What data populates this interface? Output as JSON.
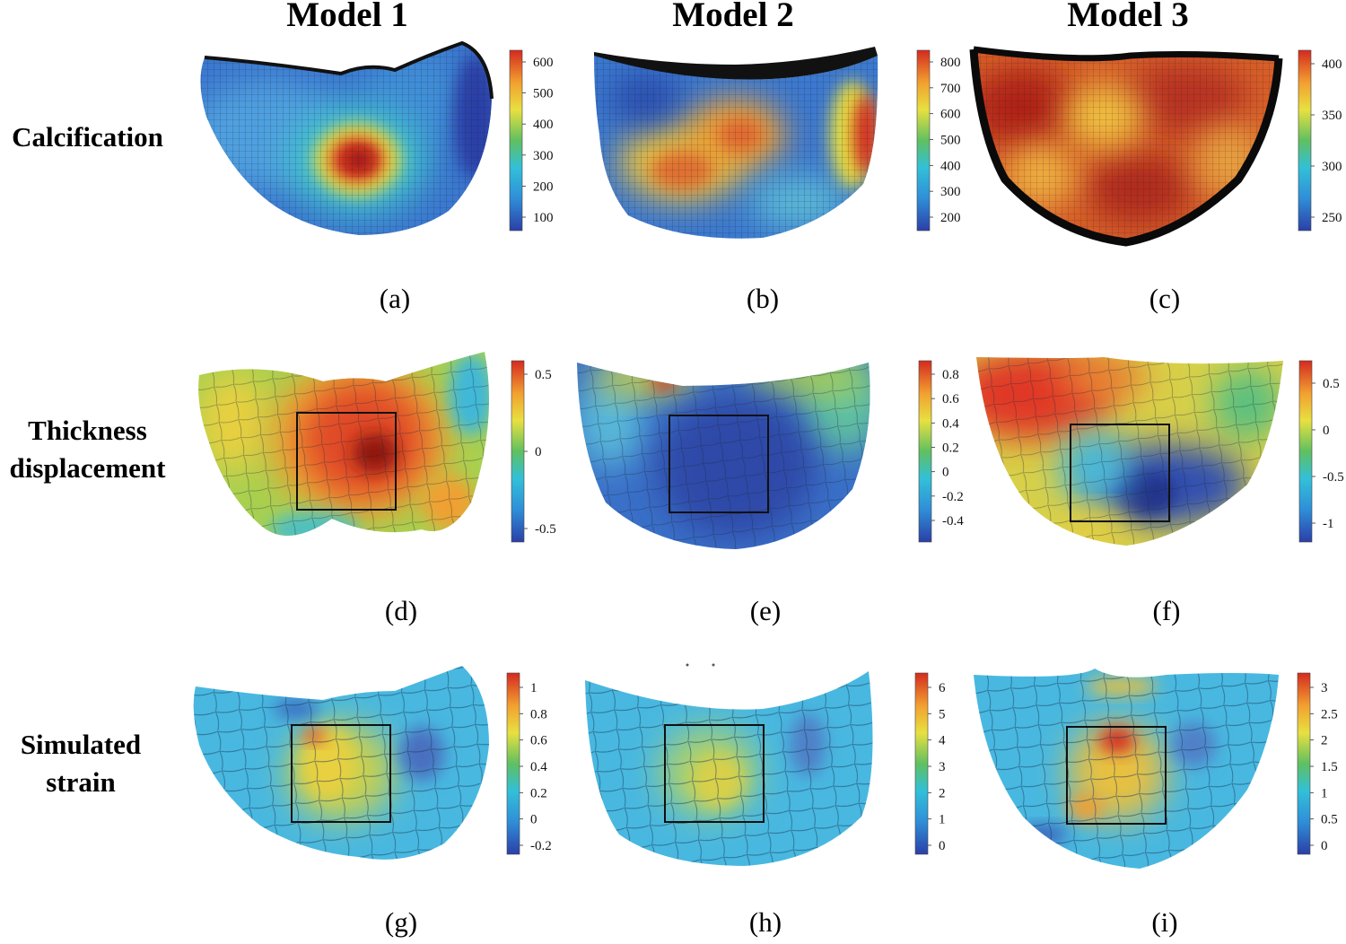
{
  "columns": [
    "Model 1",
    "Model 2",
    "Model 3"
  ],
  "rows": [
    {
      "label_lines": [
        "Calcification"
      ]
    },
    {
      "label_lines": [
        "Thickness",
        "displacement"
      ]
    },
    {
      "label_lines": [
        "Simulated",
        "strain"
      ]
    }
  ],
  "panels": [
    {
      "letter": "(a)",
      "colorbar_ticks": [
        "600",
        "500",
        "400",
        "300",
        "200",
        "100"
      ]
    },
    {
      "letter": "(b)",
      "colorbar_ticks": [
        "800",
        "700",
        "600",
        "500",
        "400",
        "300",
        "200"
      ]
    },
    {
      "letter": "(c)",
      "colorbar_ticks": [
        "400",
        "350",
        "300",
        "250"
      ]
    },
    {
      "letter": "(d)",
      "colorbar_ticks": [
        "0.5",
        "0",
        "-0.5"
      ]
    },
    {
      "letter": "(e)",
      "colorbar_ticks": [
        "0.8",
        "0.6",
        "0.4",
        "0.2",
        "0",
        "-0.2",
        "-0.4"
      ]
    },
    {
      "letter": "(f)",
      "colorbar_ticks": [
        "0.5",
        "0",
        "-0.5",
        "-1"
      ]
    },
    {
      "letter": "(g)",
      "colorbar_ticks": [
        "1",
        "0.8",
        "0.6",
        "0.4",
        "0.2",
        "0",
        "-0.2"
      ]
    },
    {
      "letter": "(h)",
      "colorbar_ticks": [
        "6",
        "5",
        "4",
        "3",
        "2",
        "1",
        "0"
      ]
    },
    {
      "letter": "(i)",
      "colorbar_ticks": [
        "3",
        "2.5",
        "2",
        "1.5",
        "1",
        "0.5",
        "0"
      ]
    }
  ],
  "colormap": [
    "#2b3fa8",
    "#2f8fd8",
    "#32c0d8",
    "#60c060",
    "#e8e040",
    "#f2a030",
    "#d42a20"
  ]
}
